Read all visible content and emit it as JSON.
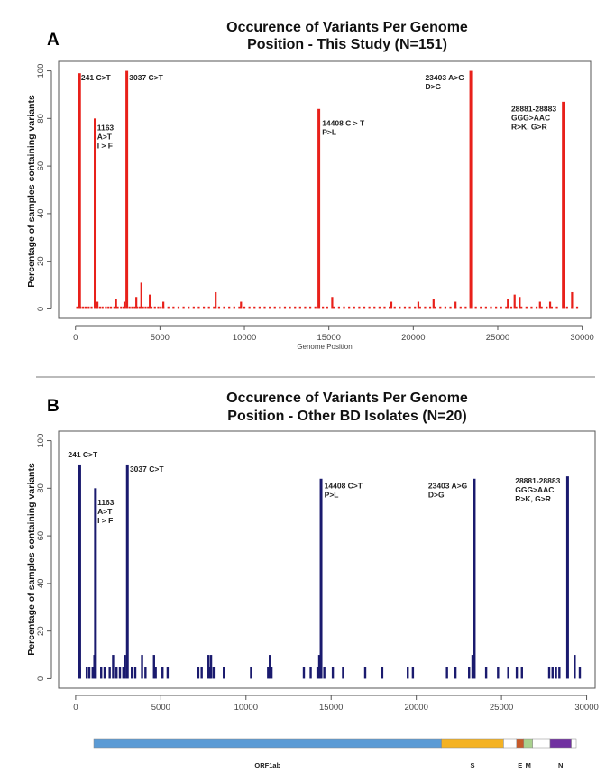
{
  "colors": {
    "series_a": "#e8201a",
    "series_b": "#1a1a6e",
    "gene_border": "#888888"
  },
  "chart_data": [
    {
      "type": "bar",
      "panel_label": "A",
      "title_line1": "Occurence of Variants Per Genome",
      "title_line2": "Position - This Study (N=151)",
      "xlabel": "Genome Position",
      "ylabel": "Percentage of samples containing variants",
      "xlim": [
        -1000,
        30500
      ],
      "ylim": [
        -4,
        104
      ],
      "xticks": [
        0,
        5000,
        10000,
        15000,
        20000,
        25000,
        30000
      ],
      "yticks": [
        0,
        20,
        40,
        60,
        80,
        100
      ],
      "baseline_x": [
        100,
        300,
        450,
        600,
        780,
        950,
        1280,
        1450,
        1600,
        1800,
        1950,
        2100,
        2300,
        2500,
        2700,
        2850,
        3200,
        3350,
        3500,
        3650,
        3800,
        4000,
        4150,
        4300,
        4500,
        4700,
        4900,
        5050,
        5200,
        5500,
        5800,
        6100,
        6400,
        6700,
        7000,
        7300,
        7600,
        7900,
        8200,
        8500,
        8800,
        9100,
        9400,
        9700,
        10000,
        10300,
        10600,
        10900,
        11200,
        11500,
        11800,
        12100,
        12400,
        12700,
        13000,
        13300,
        13600,
        13900,
        14200,
        14650,
        14900,
        15300,
        15600,
        15900,
        16200,
        16500,
        16800,
        17100,
        17400,
        17700,
        18000,
        18300,
        18600,
        18900,
        19200,
        19500,
        19800,
        20100,
        20400,
        20700,
        21000,
        21300,
        21600,
        21900,
        22200,
        22500,
        22800,
        23100,
        23700,
        24000,
        24300,
        24600,
        24900,
        25200,
        25500,
        25800,
        26100,
        26400,
        26700,
        27000,
        27300,
        27600,
        27900,
        28200,
        28500,
        29100,
        29400,
        29700
      ],
      "baseline_value": 1,
      "peaks": [
        {
          "x": 241,
          "value": 99
        },
        {
          "x": 1163,
          "value": 80
        },
        {
          "x": 3037,
          "value": 100
        },
        {
          "x": 14408,
          "value": 84
        },
        {
          "x": 23403,
          "value": 100
        },
        {
          "x": 28881,
          "value": 87
        },
        {
          "x": 3900,
          "value": 11
        },
        {
          "x": 4400,
          "value": 6
        },
        {
          "x": 3600,
          "value": 5
        },
        {
          "x": 8300,
          "value": 7
        },
        {
          "x": 15200,
          "value": 5
        },
        {
          "x": 29400,
          "value": 7
        },
        {
          "x": 26000,
          "value": 6
        },
        {
          "x": 26300,
          "value": 5
        },
        {
          "x": 21200,
          "value": 4
        },
        {
          "x": 2400,
          "value": 4
        },
        {
          "x": 1300,
          "value": 3
        },
        {
          "x": 5200,
          "value": 3
        },
        {
          "x": 9800,
          "value": 3
        },
        {
          "x": 18700,
          "value": 3
        },
        {
          "x": 25600,
          "value": 4
        },
        {
          "x": 27500,
          "value": 3
        },
        {
          "x": 28100,
          "value": 3
        },
        {
          "x": 2900,
          "value": 3
        },
        {
          "x": 22500,
          "value": 3
        },
        {
          "x": 20300,
          "value": 3
        }
      ],
      "annotations": [
        {
          "lines": [
            "241 C>T"
          ],
          "x": 330,
          "y": 96
        },
        {
          "lines": [
            "1163",
            "A>T",
            "I > F"
          ],
          "x": 1280,
          "y": 75
        },
        {
          "lines": [
            "3037 C>T"
          ],
          "x": 3180,
          "y": 96
        },
        {
          "lines": [
            "14408 C > T",
            "P>L"
          ],
          "x": 14600,
          "y": 77
        },
        {
          "lines": [
            "23403 A>G",
            "D>G"
          ],
          "x": 20700,
          "y": 96
        },
        {
          "lines": [
            "28881-28883",
            "GGG>AAC",
            "R>K, G>R"
          ],
          "x": 25800,
          "y": 83
        }
      ]
    },
    {
      "type": "bar",
      "panel_label": "B",
      "title_line1": "Occurence of Variants Per Genome",
      "title_line2": "Position - Other BD Isolates (N=20)",
      "xlabel": "",
      "ylabel": "Percentage of samples containing variants",
      "xlim": [
        -1000,
        30500
      ],
      "ylim": [
        -4,
        104
      ],
      "xticks": [
        0,
        5000,
        10000,
        15000,
        20000,
        25000,
        30000
      ],
      "yticks": [
        0,
        20,
        40,
        60,
        80,
        100
      ],
      "baseline_x": [
        250,
        650,
        800,
        1500,
        1700,
        2000,
        2400,
        2600,
        2800,
        3300,
        3500,
        4100,
        4700,
        5100,
        5400,
        7200,
        7400,
        7900,
        8100,
        8700,
        10300,
        11300,
        11500,
        13400,
        13800,
        14200,
        14600,
        15100,
        15700,
        17000,
        18000,
        19500,
        19800,
        21800,
        22300,
        23100,
        24100,
        24800,
        25400,
        25900,
        26200,
        27800,
        28000,
        28200,
        28400,
        29600
      ],
      "baseline_value": 5,
      "peaks": [
        {
          "x": 241,
          "value": 90
        },
        {
          "x": 1163,
          "value": 80
        },
        {
          "x": 3037,
          "value": 90
        },
        {
          "x": 14408,
          "value": 84
        },
        {
          "x": 23403,
          "value": 84
        },
        {
          "x": 28881,
          "value": 85
        },
        {
          "x": 1000,
          "value": 5
        },
        {
          "x": 1100,
          "value": 10
        },
        {
          "x": 2200,
          "value": 10
        },
        {
          "x": 2900,
          "value": 10
        },
        {
          "x": 3900,
          "value": 10
        },
        {
          "x": 4600,
          "value": 10
        },
        {
          "x": 7800,
          "value": 10
        },
        {
          "x": 7950,
          "value": 10
        },
        {
          "x": 11400,
          "value": 10
        },
        {
          "x": 14300,
          "value": 10
        },
        {
          "x": 23300,
          "value": 10
        },
        {
          "x": 29300,
          "value": 10
        }
      ],
      "annotations": [
        {
          "lines": [
            "241 C>T"
          ],
          "x": -450,
          "y": 93
        },
        {
          "lines": [
            "1163",
            "A>T",
            "I > F"
          ],
          "x": 1280,
          "y": 73
        },
        {
          "lines": [
            "3037 C>T"
          ],
          "x": 3180,
          "y": 87
        },
        {
          "lines": [
            "14408 C>T",
            "P>L"
          ],
          "x": 14600,
          "y": 80
        },
        {
          "lines": [
            "23403 A>G",
            "D>G"
          ],
          "x": 20700,
          "y": 80
        },
        {
          "lines": [
            "28881-28883",
            "GGG>AAC",
            "R>K, G>R"
          ],
          "x": 25800,
          "y": 82
        }
      ]
    }
  ],
  "genome_map": {
    "length": 29903,
    "segments": [
      {
        "name": "ORF1ab",
        "start": 0,
        "end": 21550,
        "color": "#5b9bd5",
        "label": "ORF1ab"
      },
      {
        "name": "S",
        "start": 21550,
        "end": 25400,
        "color": "#f4b223",
        "label": "S"
      },
      {
        "name": "gap1",
        "start": 25400,
        "end": 26200,
        "color": "#ffffff",
        "label": ""
      },
      {
        "name": "E",
        "start": 26200,
        "end": 26650,
        "color": "#c65a2a",
        "label": "E"
      },
      {
        "name": "M",
        "start": 26650,
        "end": 27200,
        "color": "#a9d18e",
        "label": "M"
      },
      {
        "name": "gap2",
        "start": 27200,
        "end": 28280,
        "color": "#ffffff",
        "label": ""
      },
      {
        "name": "N",
        "start": 28280,
        "end": 29600,
        "color": "#7030a0",
        "label": "N"
      },
      {
        "name": "gap3",
        "start": 29600,
        "end": 29903,
        "color": "#ffffff",
        "label": ""
      }
    ]
  }
}
